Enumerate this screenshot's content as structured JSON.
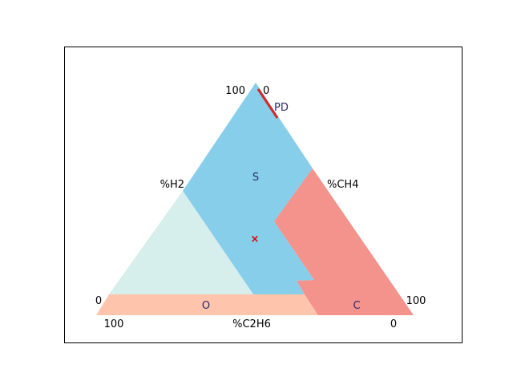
{
  "diagram": {
    "axis_labels": {
      "left": "%H2",
      "right": "%CH4",
      "bottom": "%C2H6"
    },
    "tick_labels": {
      "top_left": "100",
      "top_right": "0",
      "left_bottom_outer": "0",
      "bottom_left": "100",
      "right_bottom_outer": "100",
      "bottom_right": "0"
    },
    "regions": [
      {
        "label": "S",
        "color": "#87CEEB"
      },
      {
        "label": "",
        "color": "#D6EEEC"
      },
      {
        "label": "O",
        "color": "#FFC5AC"
      },
      {
        "label": "C",
        "color": "#F4928C"
      }
    ],
    "annotations": {
      "pd_label": "PD",
      "pd_color": "#D62728",
      "marker_color": "#DD0000",
      "marker_glyph": "×"
    }
  }
}
